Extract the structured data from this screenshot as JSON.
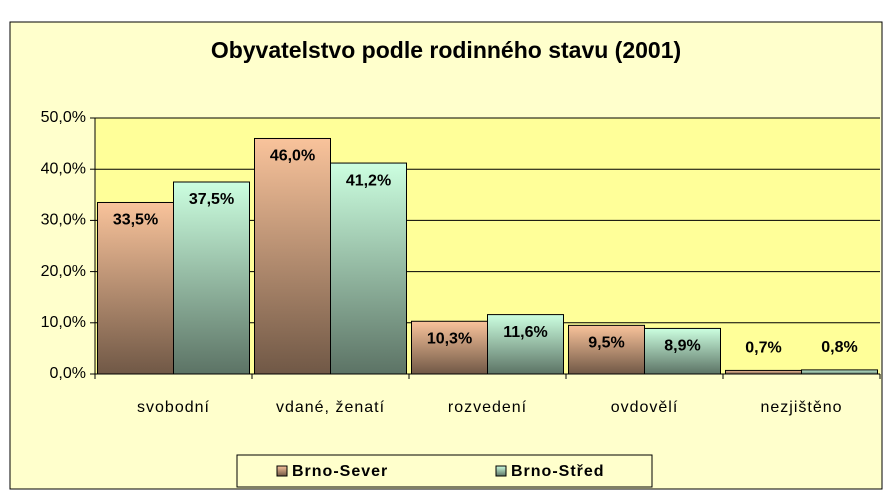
{
  "chart_data": {
    "type": "bar",
    "title": "Obyvatelstvo podle rodinného stavu (2001)",
    "categories": [
      "svobodní",
      "vdané, ženatí",
      "rozvedení",
      "ovdovělí",
      "nezjištěno"
    ],
    "series": [
      {
        "name": "Brno-Sever",
        "color": "#f9c39b",
        "values": [
          33.5,
          46.0,
          10.3,
          9.5,
          0.7
        ],
        "value_labels": [
          "33,5%",
          "46,0%",
          "10,3%",
          "9,5%",
          "0,7%"
        ]
      },
      {
        "name": "Brno-Střed",
        "color": "#ccffe0",
        "values": [
          37.5,
          41.2,
          11.6,
          8.9,
          0.8
        ],
        "value_labels": [
          "37,5%",
          "41,2%",
          "11,6%",
          "8,9%",
          "0,8%"
        ]
      }
    ],
    "ylim": [
      0,
      50
    ],
    "yticks": [
      {
        "value": 0,
        "label": "0,0%"
      },
      {
        "value": 10,
        "label": "10,0%"
      },
      {
        "value": 20,
        "label": "20,0%"
      },
      {
        "value": 30,
        "label": "30,0%"
      },
      {
        "value": 40,
        "label": "40,0%"
      },
      {
        "value": 50,
        "label": "50,0%"
      }
    ],
    "grid": true,
    "legend": "bottom"
  }
}
